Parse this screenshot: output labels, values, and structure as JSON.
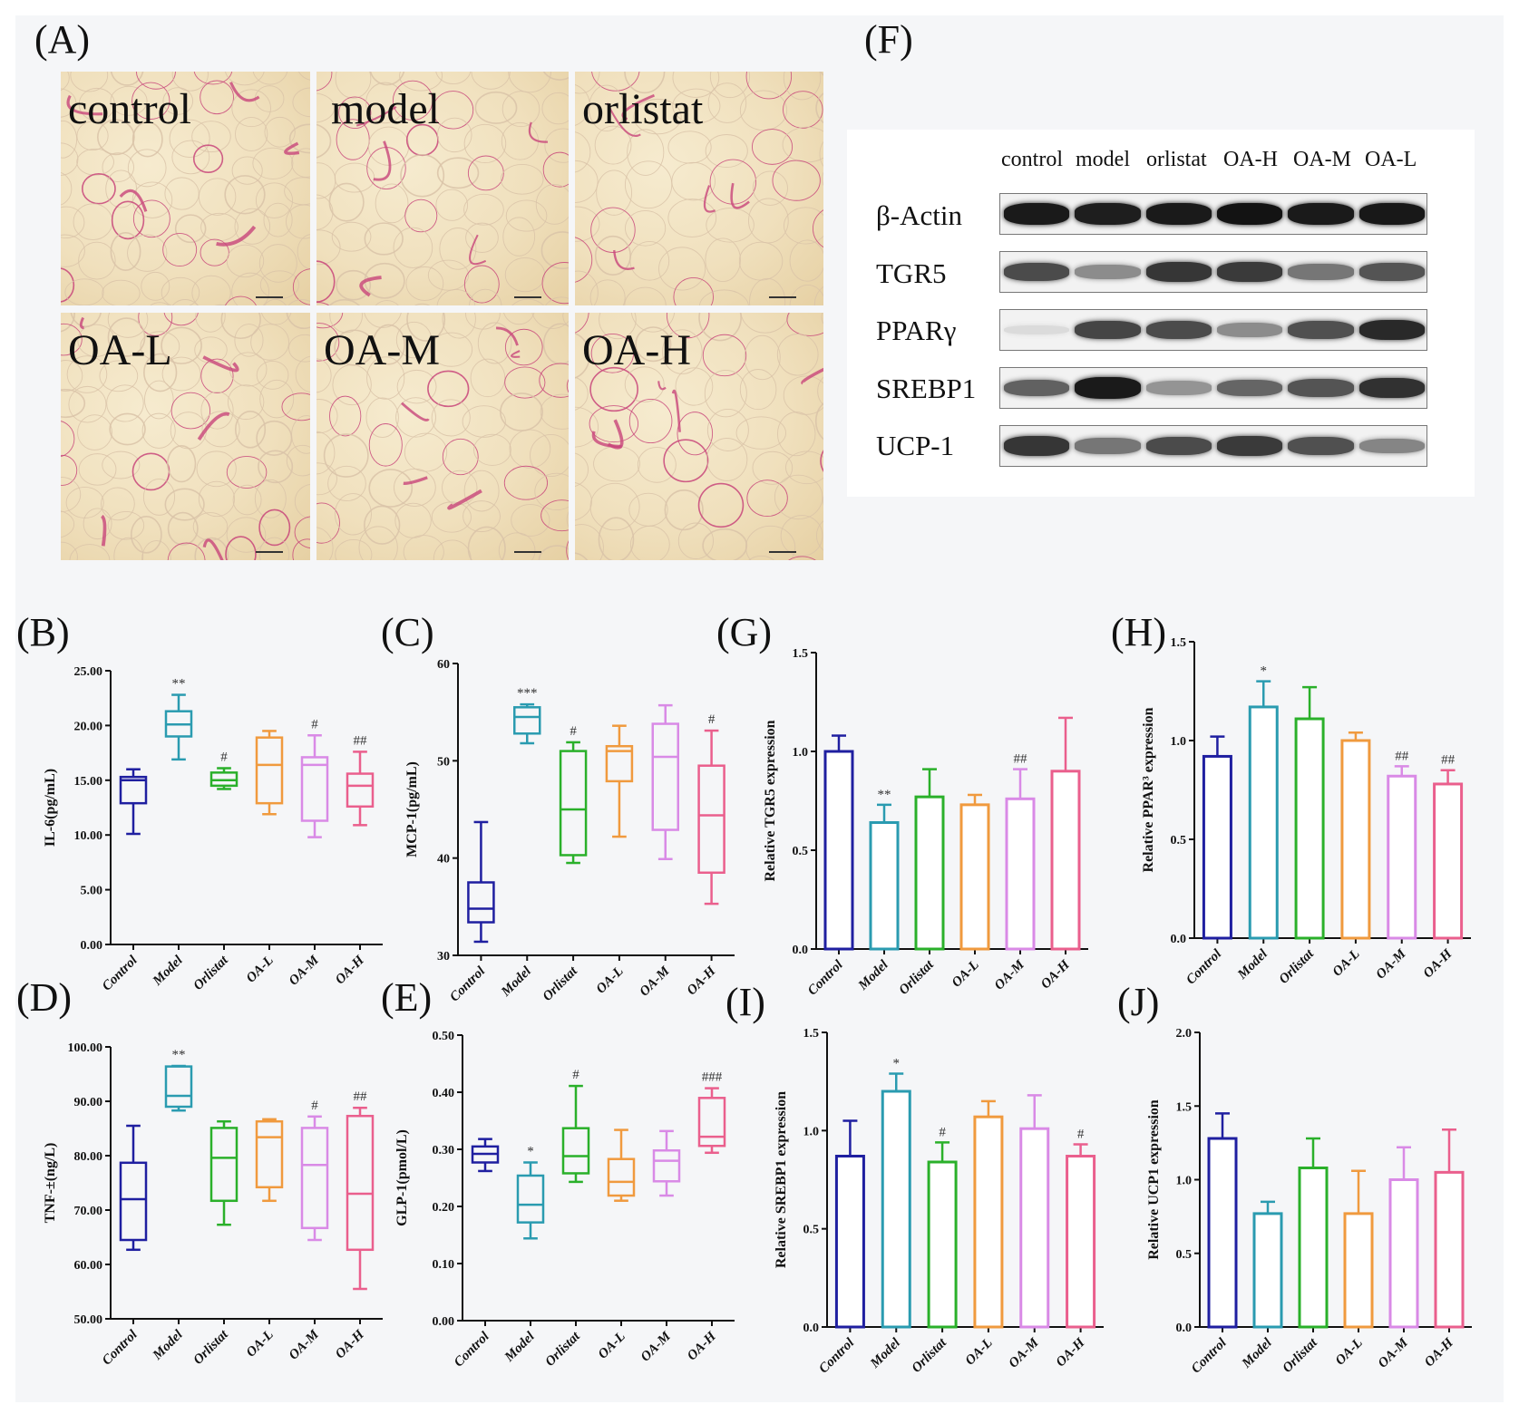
{
  "panel_labels": {
    "A": "(A)",
    "B": "(B)",
    "C": "(C)",
    "D": "(D)",
    "E": "(E)",
    "F": "(F)",
    "G": "(G)",
    "H": "(H)",
    "I": "(I)",
    "J": "(J)"
  },
  "histology": {
    "panels": [
      "control",
      "model",
      "orlistat",
      "OA-L",
      "OA-M",
      "OA-H"
    ],
    "tissue_color": "#f0e0bd",
    "stain_color": "#c8457a"
  },
  "western_blot": {
    "lanes": [
      "control",
      "model",
      "orlistat",
      "OA-H",
      "OA-M",
      "OA-L"
    ],
    "proteins": [
      {
        "name": "β-Actin",
        "intensity": [
          0.95,
          0.93,
          0.95,
          0.98,
          0.95,
          0.96
        ]
      },
      {
        "name": "TGR5",
        "intensity": [
          0.72,
          0.42,
          0.82,
          0.8,
          0.52,
          0.68
        ]
      },
      {
        "name": "PPARγ",
        "intensity": [
          0.05,
          0.75,
          0.72,
          0.42,
          0.7,
          0.88
        ]
      },
      {
        "name": "SREBP1",
        "intensity": [
          0.62,
          0.95,
          0.38,
          0.6,
          0.68,
          0.84
        ]
      },
      {
        "name": "UCP-1",
        "intensity": [
          0.82,
          0.52,
          0.72,
          0.8,
          0.7,
          0.45
        ]
      }
    ]
  },
  "chart_data": [
    {
      "id": "B",
      "type": "boxplot",
      "categories": [
        "Control",
        "Model",
        "Orlistat",
        "OA-L",
        "OA-M",
        "OA-H"
      ],
      "ylabel": "IL-6(pg/mL)",
      "ylim": [
        0,
        25
      ],
      "yticks": [
        "0.00",
        "5.00",
        "10.00",
        "15.00",
        "20.00",
        "25.00"
      ],
      "boxes": [
        {
          "min": 10.1,
          "q1": 12.9,
          "median": 15.0,
          "q3": 15.3,
          "max": 16.0
        },
        {
          "min": 16.9,
          "q1": 19.0,
          "median": 20.1,
          "q3": 21.3,
          "max": 22.8
        },
        {
          "min": 14.2,
          "q1": 14.5,
          "median": 15.0,
          "q3": 15.7,
          "max": 16.1
        },
        {
          "min": 11.9,
          "q1": 12.9,
          "median": 16.4,
          "q3": 18.9,
          "max": 19.5
        },
        {
          "min": 9.8,
          "q1": 11.3,
          "median": 16.4,
          "q3": 17.1,
          "max": 19.1
        },
        {
          "min": 10.9,
          "q1": 12.6,
          "median": 14.5,
          "q3": 15.6,
          "max": 17.6
        }
      ],
      "annotations": [
        "",
        "**",
        "#",
        "",
        "#",
        "##"
      ],
      "colors": [
        "#1f1fa0",
        "#2a9bb0",
        "#2ab02a",
        "#f09a3e",
        "#d98ae6",
        "#ea5f8d"
      ]
    },
    {
      "id": "C",
      "type": "boxplot",
      "categories": [
        "Control",
        "Model",
        "Orlistat",
        "OA-L",
        "OA-M",
        "OA-H"
      ],
      "ylabel": "MCP-1(pg/mL)",
      "ylim": [
        30,
        60
      ],
      "yticks": [
        "30",
        "40",
        "50",
        "60"
      ],
      "boxes": [
        {
          "min": 31.4,
          "q1": 33.4,
          "median": 34.8,
          "q3": 37.5,
          "max": 43.7
        },
        {
          "min": 51.8,
          "q1": 52.8,
          "median": 54.5,
          "q3": 55.5,
          "max": 55.8
        },
        {
          "min": 39.5,
          "q1": 40.3,
          "median": 45.0,
          "q3": 51.0,
          "max": 51.9
        },
        {
          "min": 42.2,
          "q1": 47.9,
          "median": 51.0,
          "q3": 51.5,
          "max": 53.6
        },
        {
          "min": 39.9,
          "q1": 42.9,
          "median": 50.4,
          "q3": 53.8,
          "max": 55.7
        },
        {
          "min": 35.3,
          "q1": 38.5,
          "median": 44.4,
          "q3": 49.5,
          "max": 53.1
        }
      ],
      "annotations": [
        "",
        "***",
        "#",
        "",
        "",
        "#"
      ],
      "colors": [
        "#1f1fa0",
        "#2a9bb0",
        "#2ab02a",
        "#f09a3e",
        "#d98ae6",
        "#ea5f8d"
      ]
    },
    {
      "id": "D",
      "type": "boxplot",
      "categories": [
        "Control",
        "Model",
        "Orlistat",
        "OA-L",
        "OA-M",
        "OA-H"
      ],
      "ylabel": "TNF-±(ng/L)",
      "ylim": [
        50,
        100
      ],
      "yticks": [
        "50.00",
        "60.00",
        "70.00",
        "80.00",
        "90.00",
        "100.00"
      ],
      "boxes": [
        {
          "min": 62.7,
          "q1": 64.5,
          "median": 72.0,
          "q3": 78.7,
          "max": 85.5
        },
        {
          "min": 88.3,
          "q1": 89.0,
          "median": 91.0,
          "q3": 96.4,
          "max": 96.5
        },
        {
          "min": 67.3,
          "q1": 71.7,
          "median": 79.6,
          "q3": 85.1,
          "max": 86.3
        },
        {
          "min": 71.7,
          "q1": 74.2,
          "median": 83.4,
          "q3": 86.3,
          "max": 86.7
        },
        {
          "min": 64.5,
          "q1": 66.7,
          "median": 78.3,
          "q3": 85.1,
          "max": 87.2
        },
        {
          "min": 55.5,
          "q1": 62.7,
          "median": 73.0,
          "q3": 87.3,
          "max": 88.8
        }
      ],
      "annotations": [
        "",
        "**",
        "",
        "",
        "#",
        "##"
      ],
      "colors": [
        "#1f1fa0",
        "#2a9bb0",
        "#2ab02a",
        "#f09a3e",
        "#d98ae6",
        "#ea5f8d"
      ]
    },
    {
      "id": "E",
      "type": "boxplot",
      "categories": [
        "Control",
        "Model",
        "Orlistat",
        "OA-L",
        "OA-M",
        "OA-H"
      ],
      "ylabel": "GLP-1(pmol/L)",
      "ylim": [
        0,
        0.5
      ],
      "yticks": [
        "0.00",
        "0.10",
        "0.20",
        "0.30",
        "0.40",
        "0.50"
      ],
      "boxes": [
        {
          "min": 0.262,
          "q1": 0.277,
          "median": 0.292,
          "q3": 0.305,
          "max": 0.318
        },
        {
          "min": 0.144,
          "q1": 0.172,
          "median": 0.203,
          "q3": 0.254,
          "max": 0.277
        },
        {
          "min": 0.243,
          "q1": 0.258,
          "median": 0.288,
          "q3": 0.337,
          "max": 0.411
        },
        {
          "min": 0.21,
          "q1": 0.219,
          "median": 0.243,
          "q3": 0.283,
          "max": 0.334
        },
        {
          "min": 0.219,
          "q1": 0.244,
          "median": 0.28,
          "q3": 0.298,
          "max": 0.332
        },
        {
          "min": 0.294,
          "q1": 0.306,
          "median": 0.322,
          "q3": 0.39,
          "max": 0.407
        }
      ],
      "annotations": [
        "",
        "*",
        "#",
        "",
        "",
        "###"
      ],
      "colors": [
        "#1f1fa0",
        "#2a9bb0",
        "#2ab02a",
        "#f09a3e",
        "#d98ae6",
        "#ea5f8d"
      ]
    },
    {
      "id": "G",
      "type": "bar",
      "categories": [
        "Control",
        "Model",
        "Orlistat",
        "OA-L",
        "OA-M",
        "OA-H"
      ],
      "ylabel": "Relative TGR5 expression",
      "ylim": [
        0,
        1.5
      ],
      "yticks": [
        "0.0",
        "0.5",
        "1.0",
        "1.5"
      ],
      "values": [
        1.0,
        0.64,
        0.77,
        0.73,
        0.76,
        0.9
      ],
      "errors": [
        0.08,
        0.09,
        0.14,
        0.05,
        0.15,
        0.27
      ],
      "annotations": [
        "",
        "**",
        "",
        "",
        "##",
        ""
      ],
      "colors": [
        "#1f1fa0",
        "#2a9bb0",
        "#2ab02a",
        "#f09a3e",
        "#d98ae6",
        "#ea5f8d"
      ]
    },
    {
      "id": "H",
      "type": "bar",
      "categories": [
        "Control",
        "Model",
        "Orlistat",
        "OA-L",
        "OA-M",
        "OA-H"
      ],
      "ylabel": "Relative PPAR³ expression",
      "ylim": [
        0,
        1.5
      ],
      "yticks": [
        "0.0",
        "0.5",
        "1.0",
        "1.5"
      ],
      "values": [
        0.92,
        1.17,
        1.11,
        1.0,
        0.82,
        0.78
      ],
      "errors": [
        0.1,
        0.13,
        0.16,
        0.04,
        0.05,
        0.07
      ],
      "annotations": [
        "",
        "*",
        "",
        "",
        "##",
        "##"
      ],
      "colors": [
        "#1f1fa0",
        "#2a9bb0",
        "#2ab02a",
        "#f09a3e",
        "#d98ae6",
        "#ea5f8d"
      ]
    },
    {
      "id": "I",
      "type": "bar",
      "categories": [
        "Control",
        "Model",
        "Orlistat",
        "OA-L",
        "OA-M",
        "OA-H"
      ],
      "ylabel": "Relative SREBP1 expression",
      "ylim": [
        0,
        1.5
      ],
      "yticks": [
        "0.0",
        "0.5",
        "1.0",
        "1.5"
      ],
      "values": [
        0.87,
        1.2,
        0.84,
        1.07,
        1.01,
        0.87
      ],
      "errors": [
        0.18,
        0.09,
        0.1,
        0.08,
        0.17,
        0.06
      ],
      "annotations": [
        "",
        "*",
        "#",
        "",
        "",
        "#"
      ],
      "colors": [
        "#1f1fa0",
        "#2a9bb0",
        "#2ab02a",
        "#f09a3e",
        "#d98ae6",
        "#ea5f8d"
      ]
    },
    {
      "id": "J",
      "type": "bar",
      "categories": [
        "Control",
        "Model",
        "Orlistat",
        "OA-L",
        "OA-M",
        "OA-H"
      ],
      "ylabel": "Relative UCP1 expression",
      "ylim": [
        0,
        2.0
      ],
      "yticks": [
        "0.0",
        "0.5",
        "1.0",
        "1.5",
        "2.0"
      ],
      "values": [
        1.28,
        0.77,
        1.08,
        0.77,
        1.0,
        1.05
      ],
      "errors": [
        0.17,
        0.08,
        0.2,
        0.29,
        0.22,
        0.29
      ],
      "annotations": [
        "",
        "",
        "",
        "",
        "",
        ""
      ],
      "colors": [
        "#1f1fa0",
        "#2a9bb0",
        "#2ab02a",
        "#f09a3e",
        "#d98ae6",
        "#ea5f8d"
      ]
    }
  ]
}
